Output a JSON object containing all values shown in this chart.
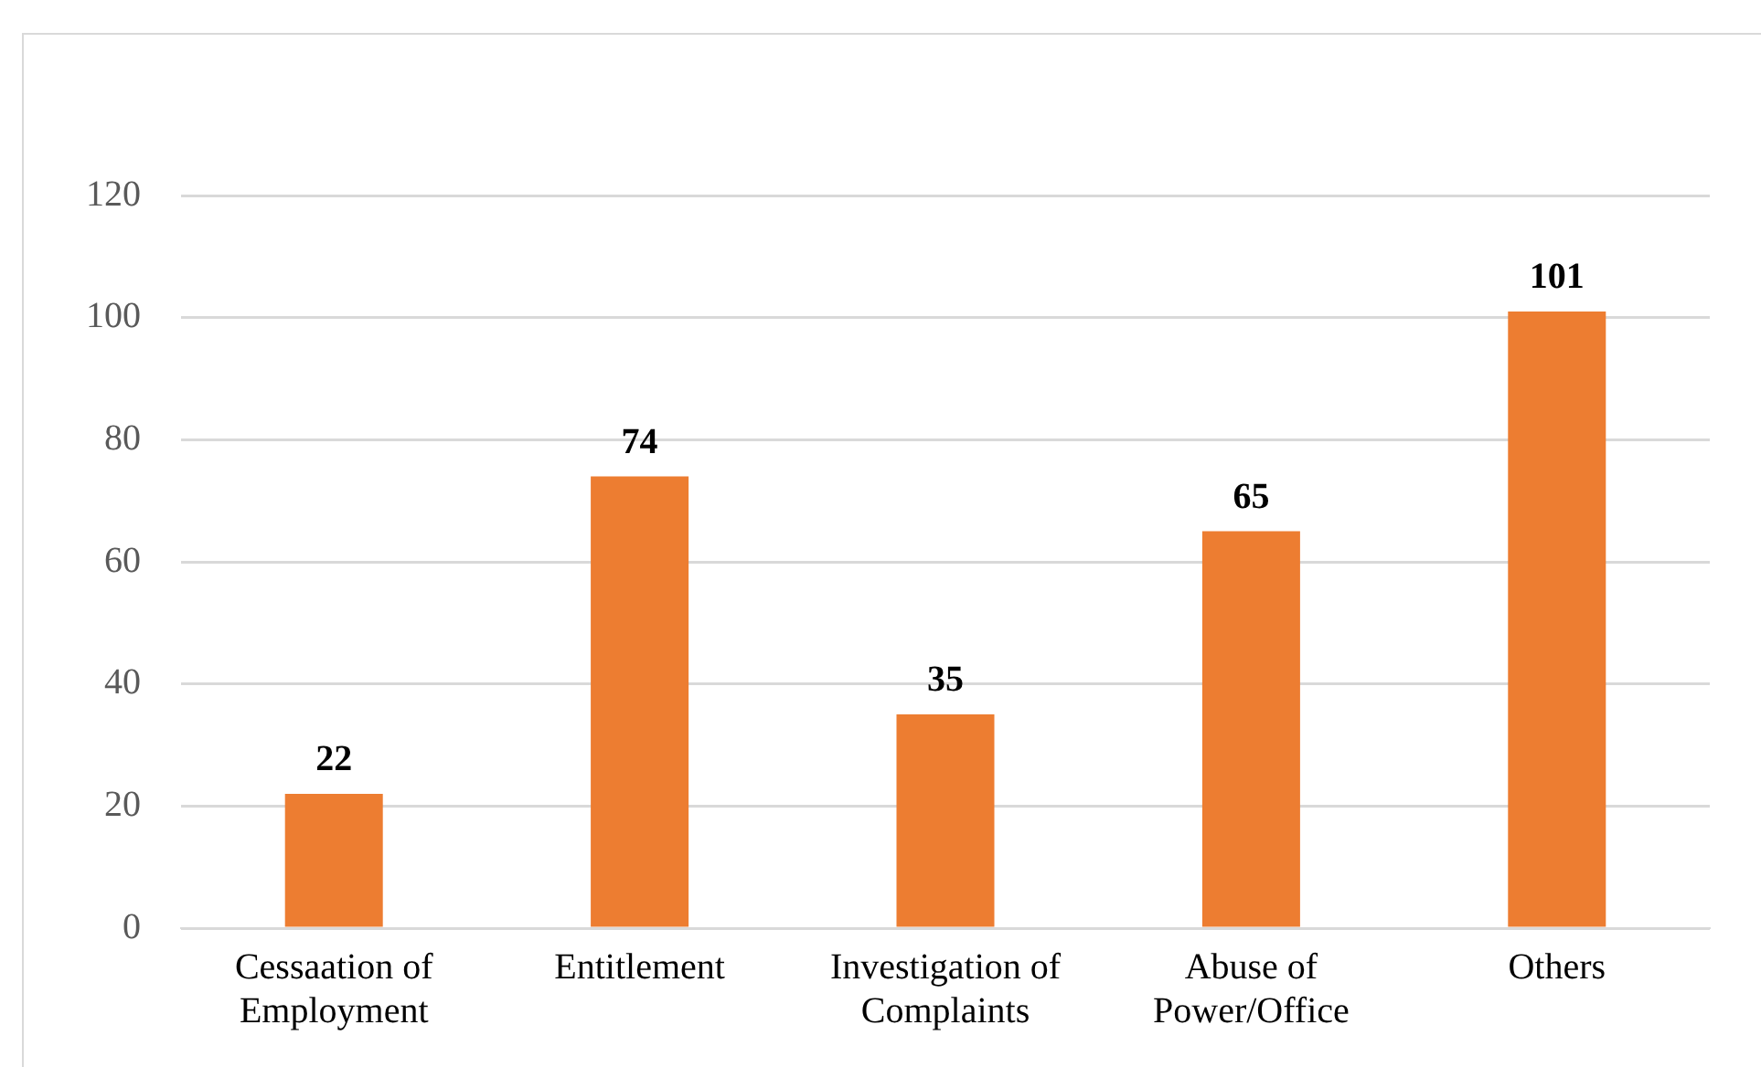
{
  "chart_data": {
    "type": "bar",
    "categories": [
      "Cessaation of Employment",
      "Entitlement",
      "Investigation of Complaints",
      "Abuse of Power/Office",
      "Others"
    ],
    "values": [
      22,
      74,
      35,
      65,
      101
    ],
    "color": "#ed7d31",
    "ylim": [
      0,
      120
    ],
    "yticks": [
      0,
      20,
      40,
      60,
      80,
      100,
      120
    ],
    "grid": "y",
    "data_labels": true,
    "legend": false
  }
}
